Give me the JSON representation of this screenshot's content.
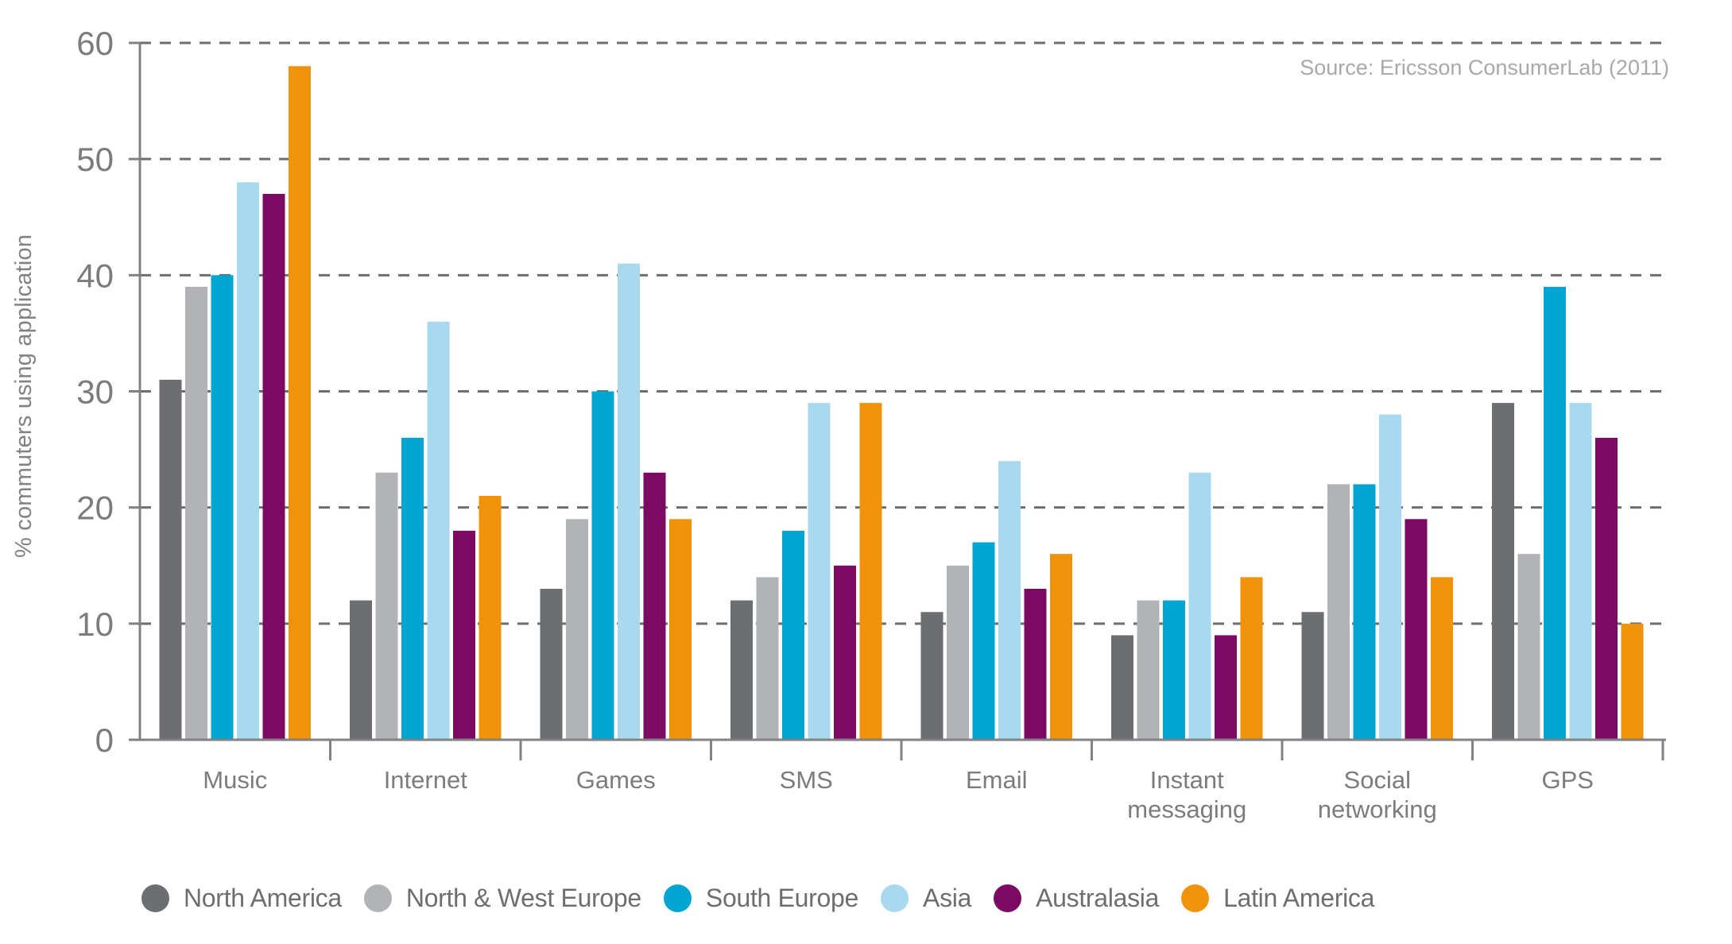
{
  "chart_data": {
    "type": "bar",
    "title": "",
    "ylabel": "% commuters using application",
    "source": "Source: Ericsson ConsumerLab (2011)",
    "ylim": [
      0,
      60
    ],
    "yticks": [
      0,
      10,
      20,
      30,
      40,
      50,
      60
    ],
    "grid": "horizontal dashed",
    "legend_position": "bottom",
    "categories": [
      "Music",
      "Internet",
      "Games",
      "SMS",
      "Email",
      "Instant messaging",
      "Social networking",
      "GPS"
    ],
    "series": [
      {
        "name": "North America",
        "color": "#6d6e71",
        "values": [
          31,
          12,
          13,
          12,
          11,
          9,
          11,
          29
        ]
      },
      {
        "name": "North & West Europe",
        "color": "#b1b3b6",
        "values": [
          39,
          23,
          19,
          14,
          15,
          12,
          22,
          16
        ]
      },
      {
        "name": "South Europe",
        "color": "#00a6d1",
        "values": [
          40,
          26,
          30,
          18,
          17,
          12,
          22,
          39
        ]
      },
      {
        "name": "Asia",
        "color": "#a9d9ee",
        "values": [
          48,
          36,
          41,
          29,
          24,
          23,
          28,
          29
        ]
      },
      {
        "name": "Australasia",
        "color": "#7c0a62",
        "values": [
          47,
          18,
          23,
          15,
          13,
          9,
          19,
          26
        ]
      },
      {
        "name": "Latin America",
        "color": "#f0930a",
        "values": [
          58,
          21,
          19,
          29,
          16,
          14,
          14,
          10
        ]
      }
    ],
    "colors": {
      "grid": "#6d6e71",
      "axis": "#808285",
      "tick_text": "#7b7c7f",
      "label_text": "#7b7c7f",
      "legend_text": "#6d6e71",
      "source_text": "#a7a9ac"
    }
  }
}
